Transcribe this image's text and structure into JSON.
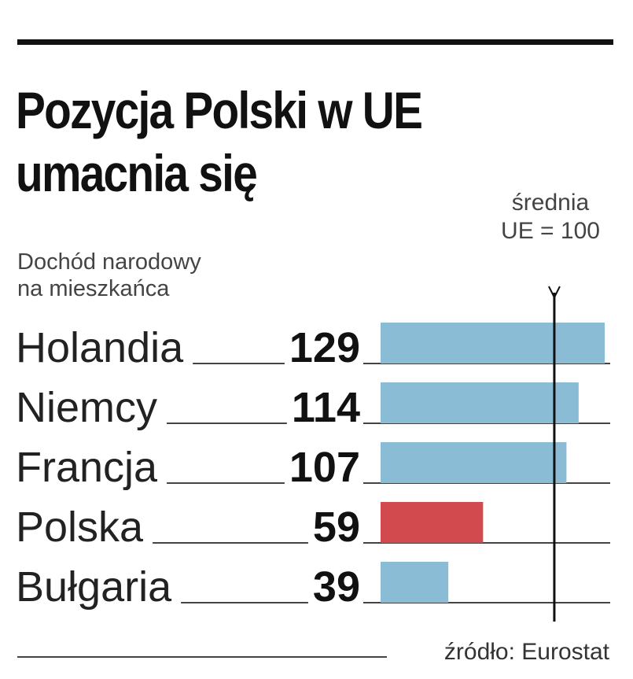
{
  "header": {
    "title_line1": "Pozycja Polski w UE",
    "title_line2": "umacnia się"
  },
  "subtitle": {
    "line1": "Dochód narodowy",
    "line2": "na mieszkańca"
  },
  "reference": {
    "line1": "średnia",
    "line2": "UE = 100"
  },
  "source": "źródło: Eurostat",
  "chart_data": {
    "type": "bar",
    "orientation": "horizontal",
    "categories": [
      "Holandia",
      "Niemcy",
      "Francja",
      "Polska",
      "Bułgaria"
    ],
    "values": [
      129,
      114,
      107,
      59,
      39
    ],
    "reference_value": 100,
    "xlim": [
      0,
      129
    ],
    "colors": {
      "default": "#8bbcd6",
      "highlight": "#d24a4e",
      "highlight_category": "Polska",
      "text": "#111111",
      "rule": "#444444"
    }
  }
}
